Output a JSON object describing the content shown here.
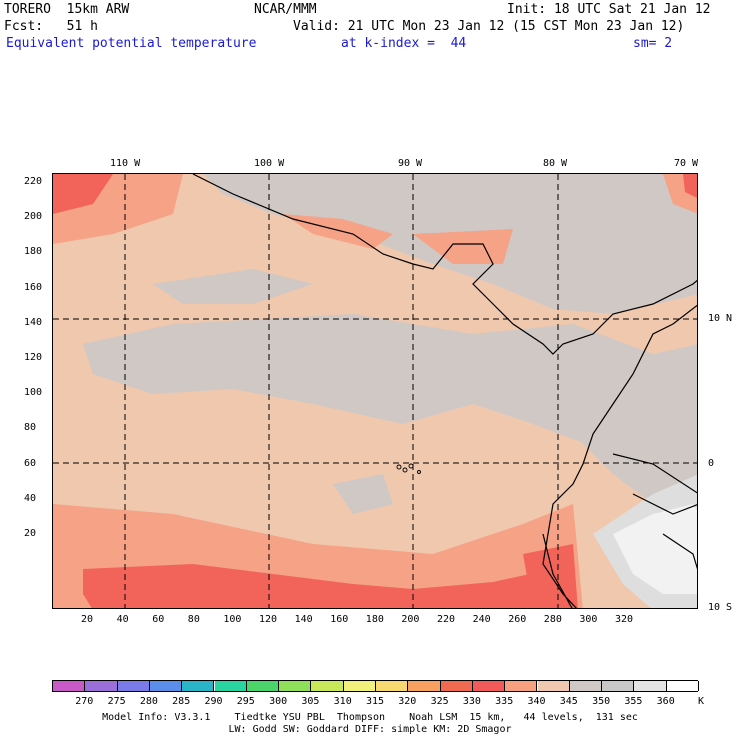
{
  "header": {
    "model": "TORERO  15km ARW",
    "org": "NCAR/MMM",
    "init": "Init: 18 UTC Sat 21 Jan 12",
    "fcst": "Fcst:   51 h",
    "valid": "Valid: 21 UTC Mon 23 Jan 12 (15 CST Mon 23 Jan 12)",
    "field": "Equivalent potential temperature",
    "level": "at k-index =  44",
    "smooth": "sm= 2"
  },
  "map": {
    "top_lon_labels": [
      "110 W",
      "100 W",
      "90 W",
      "80 W",
      "70 W"
    ],
    "right_lat_labels": [
      "10 N",
      "0",
      "10 S"
    ],
    "y_ticks": [
      "220",
      "200",
      "180",
      "160",
      "140",
      "120",
      "100",
      "80",
      "60",
      "40",
      "20"
    ],
    "x_ticks": [
      "20",
      "40",
      "60",
      "80",
      "100",
      "120",
      "140",
      "160",
      "180",
      "200",
      "220",
      "240",
      "260",
      "280",
      "300",
      "320"
    ]
  },
  "colorbar": {
    "labels": [
      "270",
      "275",
      "280",
      "285",
      "290",
      "295",
      "300",
      "305",
      "310",
      "315",
      "320",
      "325",
      "330",
      "335",
      "340",
      "345",
      "350",
      "355",
      "360"
    ],
    "unit": "K",
    "colors": [
      "#c85ac8",
      "#9b6fd8",
      "#7a7ae8",
      "#5a8ee8",
      "#2ab4c8",
      "#2ad4a0",
      "#4ad46a",
      "#8ee05a",
      "#c8e85a",
      "#f0f07a",
      "#f8d870",
      "#f8a060",
      "#f06a50",
      "#f05a58",
      "#f6a080",
      "#f0c8b0",
      "#d0c8c4",
      "#c8c8c8",
      "#e4e4e4",
      "#ffffff"
    ]
  },
  "footer": {
    "line1": "Model Info: V3.3.1    Tiedtke YSU PBL  Thompson    Noah LSM  15 km,   44 levels,  131 sec",
    "line2": "LW: Godd SW: Goddard DIFF: simple KM: 2D Smagor"
  }
}
